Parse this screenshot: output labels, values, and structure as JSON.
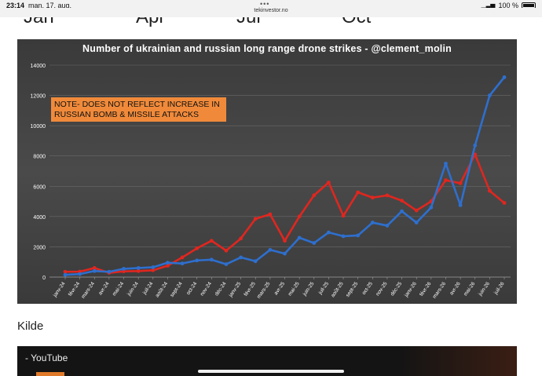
{
  "status": {
    "time": "23:14",
    "date": "man. 17. aug.",
    "dots": "•••",
    "battery": "100 %"
  },
  "browser": {
    "url": "tekinvestor.no"
  },
  "prev_labels": [
    "Jan",
    "Apr",
    "Jul",
    "Oct"
  ],
  "note": {
    "text": "NOTE- DOES NOT REFLECT INCREASE IN RUSSIAN BOMB & MISSILE ATTACKS"
  },
  "kilde": "Kilde",
  "youtube": {
    "title": "- YouTube"
  },
  "colors": {
    "red": "#e0261f",
    "blue": "#2e6fce",
    "note_bg": "#f08a3a"
  },
  "chart_data": {
    "type": "line",
    "title": "Number of ukrainian and russian long range drone strikes - @clement_molin",
    "xlabel": "",
    "ylabel": "",
    "ylim": [
      0,
      14000
    ],
    "yticks": [
      0,
      2000,
      4000,
      6000,
      8000,
      10000,
      12000,
      14000
    ],
    "grid": true,
    "categories": [
      "janv-24",
      "févr-24",
      "mars-24",
      "avr-24",
      "mai-24",
      "juin-24",
      "juil-24",
      "août-24",
      "sept-24",
      "oct-24",
      "nov-24",
      "déc-24",
      "janv-25",
      "févr-25",
      "mars-25",
      "avr-25",
      "mai-25",
      "juin-25",
      "juil-25",
      "août-25",
      "sept-25",
      "oct-25",
      "nov-25",
      "déc-25",
      "janv-26",
      "févr-26",
      "mars-26",
      "avr-26",
      "mai-26",
      "juin-26",
      "juil-26"
    ],
    "series": [
      {
        "color": "#e0261f",
        "values": [
          350,
          360,
          600,
          280,
          380,
          400,
          450,
          750,
          1300,
          1900,
          2400,
          1750,
          2550,
          3850,
          4150,
          2400,
          4000,
          5400,
          6250,
          4050,
          5600,
          5250,
          5400,
          5050,
          4400,
          5000,
          6400,
          6200,
          8100,
          5700,
          4900
        ]
      },
      {
        "color": "#2e6fce",
        "values": [
          150,
          200,
          400,
          350,
          550,
          600,
          650,
          950,
          900,
          1100,
          1150,
          850,
          1300,
          1050,
          1800,
          1550,
          2600,
          2250,
          2950,
          2700,
          2750,
          3600,
          3400,
          4350,
          3600,
          4600,
          7500,
          4750,
          8700,
          12000,
          13200
        ]
      }
    ]
  }
}
